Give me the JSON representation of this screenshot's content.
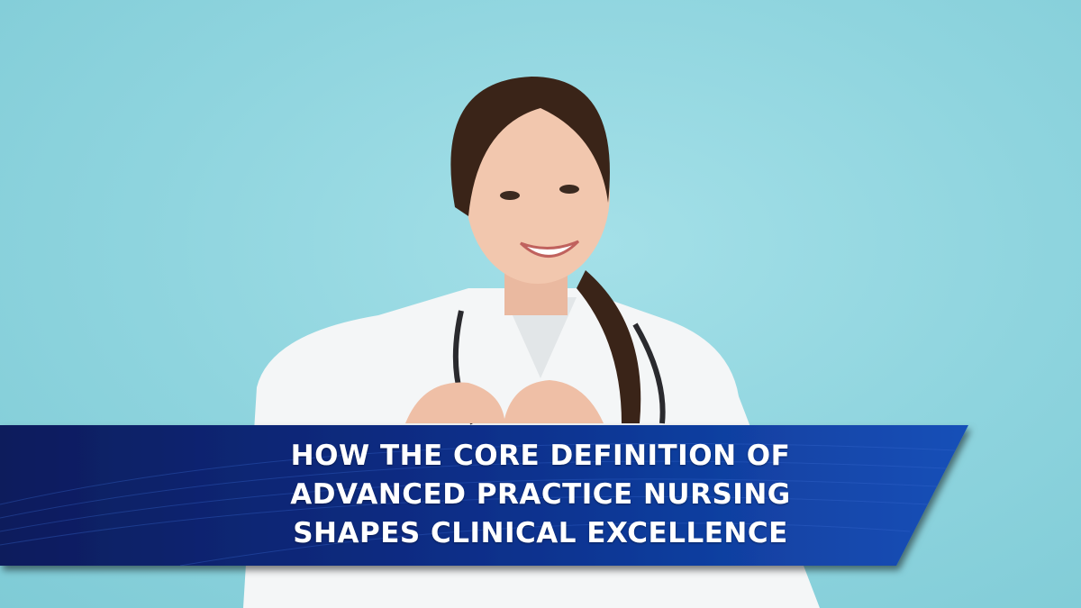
{
  "banner": {
    "lines": [
      "HOW THE CORE DEFINITION OF",
      "ADVANCED PRACTICE NURSING",
      "SHAPES CLINICAL EXCELLENCE"
    ],
    "colors": {
      "banner": "#0a2a7a",
      "background": "#8ed4de"
    }
  },
  "photo": {
    "subject": "smiling nurse in white coat with stethoscope making heart gesture"
  }
}
